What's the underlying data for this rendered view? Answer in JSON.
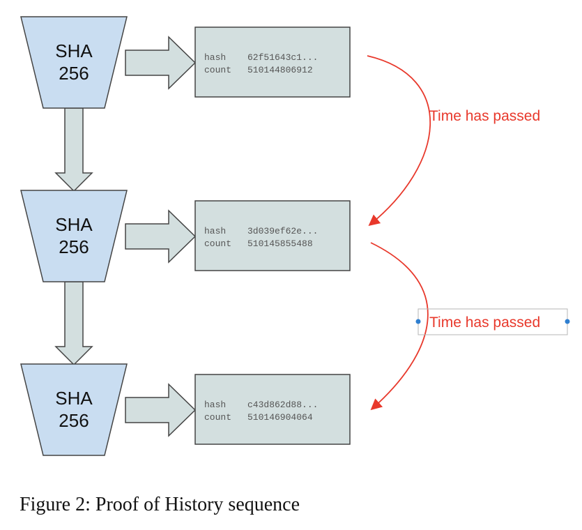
{
  "blocks": [
    {
      "line1": "SHA",
      "line2": "256",
      "hash_label": "hash",
      "hash_value": "62f51643c1...",
      "count_label": "count",
      "count_value": "510144806912"
    },
    {
      "line1": "SHA",
      "line2": "256",
      "hash_label": "hash",
      "hash_value": "3d039ef62e...",
      "count_label": "count",
      "count_value": "510145855488"
    },
    {
      "line1": "SHA",
      "line2": "256",
      "hash_label": "hash",
      "hash_value": "c43d862d88...",
      "count_label": "count",
      "count_value": "510146904064"
    }
  ],
  "annotations": [
    {
      "text": "Time has passed"
    },
    {
      "text": "Time has passed"
    }
  ],
  "caption": "Figure 2:  Proof of History sequence",
  "colors": {
    "funnel_fill": "#c9ddf1",
    "box_fill": "#d3dfdf",
    "stroke": "#444444",
    "annotation": "#e8382b",
    "selection_handle": "#2f7fd0"
  }
}
